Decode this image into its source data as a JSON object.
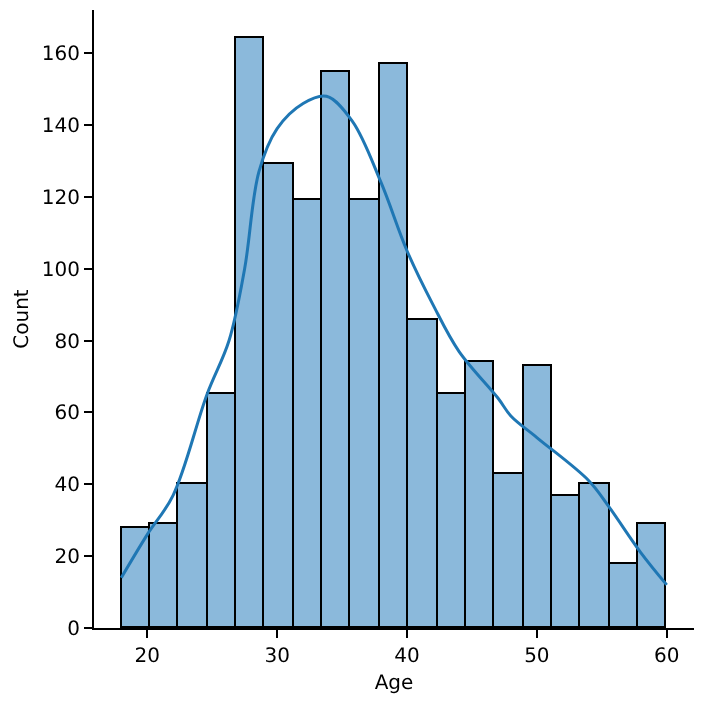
{
  "chart_data": {
    "type": "histogram",
    "xlabel": "Age",
    "ylabel": "Count",
    "bins": [
      18,
      20.21,
      22.42,
      24.63,
      26.84,
      29.05,
      31.26,
      33.47,
      35.68,
      37.89,
      40.11,
      42.32,
      44.53,
      46.74,
      48.95,
      51.16,
      53.37,
      55.58,
      57.79,
      60
    ],
    "values": [
      28,
      29,
      40,
      65,
      164,
      129,
      119,
      155,
      119,
      157,
      86,
      65,
      74,
      43,
      73,
      37,
      40,
      18,
      29
    ],
    "color": "#8bb9db",
    "series": [
      {
        "type": "line",
        "color": "#1f77b4",
        "x": [
          18,
          20,
          22,
          24.6,
          26.3,
          27.5,
          28.6,
          30,
          32,
          33.8,
          35.8,
          38,
          40,
          42,
          44,
          47,
          48,
          50,
          54,
          55.5,
          58,
          60
        ],
        "values": [
          14,
          26,
          37,
          65,
          80,
          100,
          127,
          139,
          146,
          148,
          141,
          124,
          105,
          90,
          77,
          64,
          59,
          53,
          41,
          34,
          21,
          12
        ]
      }
    ],
    "xlim": [
      15.9,
      62.1
    ],
    "ylim": [
      0,
      172
    ],
    "xticks": [
      20,
      30,
      40,
      50,
      60
    ],
    "yticks": [
      0,
      20,
      40,
      60,
      80,
      100,
      120,
      140,
      160
    ]
  }
}
